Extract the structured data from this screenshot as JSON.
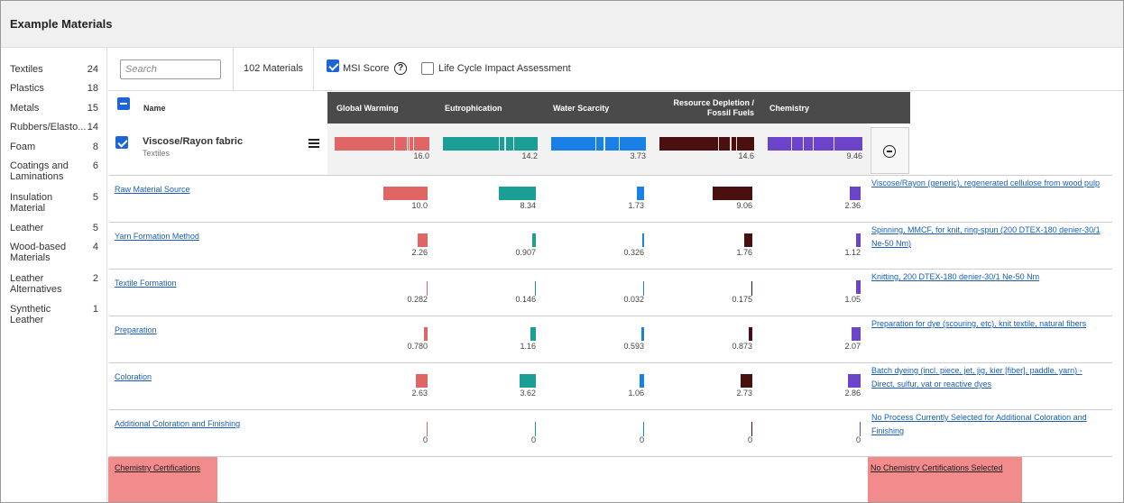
{
  "app": {
    "title": "Example Materials"
  },
  "colors": {
    "global_warming": "#e06666",
    "eutrophication": "#1a9e96",
    "water_scarcity": "#1a80e6",
    "resource_depletion": "#4a0f0f",
    "chemistry": "#6b44c9",
    "header_bg": "#4a4a4a",
    "link": "#1a5fb4",
    "pink": "#f28b8b"
  },
  "sidebar": {
    "categories": [
      {
        "label": "Textiles",
        "count": "24"
      },
      {
        "label": "Plastics",
        "count": "18"
      },
      {
        "label": "Metals",
        "count": "15"
      },
      {
        "label": "Rubbers/Elasto...",
        "count": "14"
      },
      {
        "label": "Foam",
        "count": "8"
      },
      {
        "label": "Coatings and Laminations",
        "count": "6"
      },
      {
        "label": "Insulation Material",
        "count": "5"
      },
      {
        "label": "Leather",
        "count": "5"
      },
      {
        "label": "Wood-based Materials",
        "count": "4"
      },
      {
        "label": "Leather Alternatives",
        "count": "2"
      },
      {
        "label": "Synthetic Leather",
        "count": "1"
      }
    ]
  },
  "toolbar": {
    "search_placeholder": "Search",
    "materials_count": "102 Materials",
    "msi_label": "MSI Score",
    "msi_checked": true,
    "help_glyph": "?",
    "lcia_label": "Life Cycle Impact Assessment",
    "lcia_checked": false
  },
  "table": {
    "name_header": "Name",
    "columns": [
      {
        "label": "Global Warming",
        "key": "global_warming"
      },
      {
        "label": "Eutrophication",
        "key": "eutrophication"
      },
      {
        "label": "Water Scarcity",
        "key": "water_scarcity"
      },
      {
        "label": "Resource Depletion / Fossil Fuels",
        "key": "resource_depletion"
      },
      {
        "label": "Chemistry",
        "key": "chemistry"
      }
    ],
    "material": {
      "name": "Viscose/Rayon fabric",
      "category": "Textiles",
      "checked": true,
      "totals": [
        {
          "label": "16.0",
          "value": 16.0
        },
        {
          "label": "14.2",
          "value": 14.2
        },
        {
          "label": "3.73",
          "value": 3.73
        },
        {
          "label": "14.6",
          "value": 14.6
        },
        {
          "label": "9.46",
          "value": 9.46
        }
      ]
    },
    "stages": [
      {
        "name": "Raw Material Source",
        "description": "Viscose/Rayon (generic), regenerated cellulose from wood pulp",
        "values": [
          {
            "label": "10.0",
            "value": 10.0
          },
          {
            "label": "8.34",
            "value": 8.34
          },
          {
            "label": "1.73",
            "value": 1.73
          },
          {
            "label": "9.06",
            "value": 9.06
          },
          {
            "label": "2.36",
            "value": 2.36
          }
        ]
      },
      {
        "name": "Yarn Formation Method",
        "description": "Spinning, MMCF, for knit, ring-spun (200 DTEX-180 denier-30/1 Ne-50 Nm)",
        "values": [
          {
            "label": "2.26",
            "value": 2.26
          },
          {
            "label": "0.907",
            "value": 0.907
          },
          {
            "label": "0.326",
            "value": 0.326
          },
          {
            "label": "1.76",
            "value": 1.76
          },
          {
            "label": "1.12",
            "value": 1.12
          }
        ]
      },
      {
        "name": "Textile Formation",
        "description": "Knitting, 200 DTEX-180 denier-30/1 Ne-50 Nm",
        "values": [
          {
            "label": "0.282",
            "value": 0.282
          },
          {
            "label": "0.146",
            "value": 0.146
          },
          {
            "label": "0.032",
            "value": 0.032
          },
          {
            "label": "0.175",
            "value": 0.175
          },
          {
            "label": "1.05",
            "value": 1.05
          }
        ]
      },
      {
        "name": "Preparation",
        "description": "Preparation for dye (scouring, etc), knit textile, natural fibers",
        "values": [
          {
            "label": "0.780",
            "value": 0.78
          },
          {
            "label": "1.16",
            "value": 1.16
          },
          {
            "label": "0.593",
            "value": 0.593
          },
          {
            "label": "0.873",
            "value": 0.873
          },
          {
            "label": "2.07",
            "value": 2.07
          }
        ]
      },
      {
        "name": "Coloration",
        "description": "Batch dyeing (incl. piece, jet, jig, kier [fiber], paddle, yarn) - Direct, sulfur, vat or reactive dyes",
        "values": [
          {
            "label": "2.63",
            "value": 2.63
          },
          {
            "label": "3.62",
            "value": 3.62
          },
          {
            "label": "1.06",
            "value": 1.06
          },
          {
            "label": "2.73",
            "value": 2.73
          },
          {
            "label": "2.86",
            "value": 2.86
          }
        ]
      },
      {
        "name": "Additional Coloration and Finishing",
        "description": "No Process Currently Selected for Additional Coloration and Finishing",
        "values": [
          {
            "label": "0",
            "value": 0
          },
          {
            "label": "0",
            "value": 0
          },
          {
            "label": "0",
            "value": 0
          },
          {
            "label": "0",
            "value": 0
          },
          {
            "label": "0",
            "value": 0
          }
        ]
      }
    ],
    "footer": {
      "certs_link": "Chemistry Certifications",
      "certs_status": "No Chemistry Certifications Selected"
    }
  }
}
